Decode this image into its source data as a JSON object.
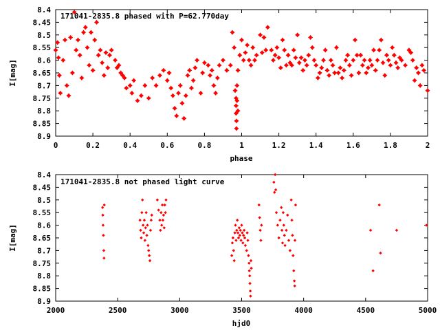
{
  "chart_data": [
    {
      "type": "scatter",
      "title": "171041-2835.8 phased with P=62.770day",
      "xlabel": "phase",
      "ylabel": "I[mag]",
      "xlim": [
        0,
        2
      ],
      "ylim": [
        8.9,
        8.4
      ],
      "y_inverted": true,
      "xticks": [
        "0",
        "0.2",
        "0.4",
        "0.6",
        "0.8",
        "1",
        "1.2",
        "1.4",
        "1.6",
        "1.8",
        "2"
      ],
      "xtick_values": [
        0,
        0.2,
        0.4,
        0.6,
        0.8,
        1,
        1.2,
        1.4,
        1.6,
        1.8,
        2
      ],
      "yticks": [
        "8.4",
        "8.45",
        "8.5",
        "8.55",
        "8.6",
        "8.65",
        "8.7",
        "8.75",
        "8.8",
        "8.85",
        "8.9"
      ],
      "ytick_values": [
        8.4,
        8.45,
        8.5,
        8.55,
        8.6,
        8.65,
        8.7,
        8.75,
        8.8,
        8.85,
        8.9
      ],
      "marker": "star",
      "color": "#ff0000",
      "points": [
        [
          0.0,
          8.56
        ],
        [
          0.01,
          8.53
        ],
        [
          0.015,
          8.59
        ],
        [
          0.02,
          8.66
        ],
        [
          0.025,
          8.73
        ],
        [
          0.04,
          8.6
        ],
        [
          0.05,
          8.52
        ],
        [
          0.06,
          8.7
        ],
        [
          0.07,
          8.74
        ],
        [
          0.08,
          8.51
        ],
        [
          0.09,
          8.65
        ],
        [
          0.1,
          8.41
        ],
        [
          0.11,
          8.56
        ],
        [
          0.12,
          8.52
        ],
        [
          0.13,
          8.58
        ],
        [
          0.14,
          8.67
        ],
        [
          0.15,
          8.49
        ],
        [
          0.16,
          8.47
        ],
        [
          0.17,
          8.55
        ],
        [
          0.18,
          8.62
        ],
        [
          0.19,
          8.49
        ],
        [
          0.2,
          8.64
        ],
        [
          0.21,
          8.52
        ],
        [
          0.22,
          8.45
        ],
        [
          0.23,
          8.58
        ],
        [
          0.24,
          8.56
        ],
        [
          0.25,
          8.61
        ],
        [
          0.26,
          8.66
        ],
        [
          0.27,
          8.57
        ],
        [
          0.28,
          8.63
        ],
        [
          0.29,
          8.58
        ],
        [
          0.3,
          8.56
        ],
        [
          0.32,
          8.6
        ],
        [
          0.33,
          8.63
        ],
        [
          0.34,
          8.62
        ],
        [
          0.35,
          8.65
        ],
        [
          0.36,
          8.66
        ],
        [
          0.37,
          8.67
        ],
        [
          0.38,
          8.71
        ],
        [
          0.4,
          8.7
        ],
        [
          0.41,
          8.73
        ],
        [
          0.42,
          8.68
        ],
        [
          0.44,
          8.76
        ],
        [
          0.46,
          8.74
        ],
        [
          0.48,
          8.7
        ],
        [
          0.5,
          8.75
        ],
        [
          0.52,
          8.67
        ],
        [
          0.54,
          8.7
        ],
        [
          0.56,
          8.66
        ],
        [
          0.58,
          8.64
        ],
        [
          0.6,
          8.68
        ],
        [
          0.61,
          8.65
        ],
        [
          0.62,
          8.71
        ],
        [
          0.63,
          8.74
        ],
        [
          0.64,
          8.79
        ],
        [
          0.65,
          8.82
        ],
        [
          0.66,
          8.73
        ],
        [
          0.67,
          8.7
        ],
        [
          0.68,
          8.77
        ],
        [
          0.69,
          8.83
        ],
        [
          0.7,
          8.74
        ],
        [
          0.71,
          8.66
        ],
        [
          0.72,
          8.64
        ],
        [
          0.73,
          8.71
        ],
        [
          0.74,
          8.68
        ],
        [
          0.75,
          8.63
        ],
        [
          0.76,
          8.6
        ],
        [
          0.78,
          8.73
        ],
        [
          0.79,
          8.65
        ],
        [
          0.8,
          8.61
        ],
        [
          0.82,
          8.62
        ],
        [
          0.83,
          8.66
        ],
        [
          0.84,
          8.64
        ],
        [
          0.85,
          8.7
        ],
        [
          0.86,
          8.73
        ],
        [
          0.87,
          8.67
        ],
        [
          0.88,
          8.62
        ],
        [
          0.9,
          8.6
        ],
        [
          0.92,
          8.64
        ],
        [
          0.94,
          8.62
        ],
        [
          0.95,
          8.49
        ],
        [
          0.96,
          8.55
        ],
        [
          0.965,
          8.72
        ],
        [
          0.97,
          8.75
        ],
        [
          0.97,
          8.78
        ],
        [
          0.97,
          8.81
        ],
        [
          0.972,
          8.84
        ],
        [
          0.972,
          8.87
        ],
        [
          0.975,
          8.7
        ],
        [
          0.975,
          8.76
        ],
        [
          0.98,
          8.8
        ],
        [
          0.98,
          8.64
        ],
        [
          0.99,
          8.58
        ],
        [
          1.0,
          8.52
        ],
        [
          1.01,
          8.6
        ],
        [
          1.02,
          8.57
        ],
        [
          1.03,
          8.54
        ],
        [
          1.04,
          8.6
        ],
        [
          1.05,
          8.62
        ],
        [
          1.06,
          8.55
        ],
        [
          1.07,
          8.6
        ],
        [
          1.08,
          8.58
        ],
        [
          1.1,
          8.5
        ],
        [
          1.11,
          8.57
        ],
        [
          1.12,
          8.51
        ],
        [
          1.13,
          8.56
        ],
        [
          1.14,
          8.47
        ],
        [
          1.16,
          8.56
        ],
        [
          1.17,
          8.6
        ],
        [
          1.18,
          8.58
        ],
        [
          1.19,
          8.55
        ],
        [
          1.2,
          8.59
        ],
        [
          1.21,
          8.63
        ],
        [
          1.22,
          8.52
        ],
        [
          1.23,
          8.56
        ],
        [
          1.24,
          8.62
        ],
        [
          1.25,
          8.58
        ],
        [
          1.26,
          8.61
        ],
        [
          1.27,
          8.62
        ],
        [
          1.28,
          8.56
        ],
        [
          1.29,
          8.59
        ],
        [
          1.3,
          8.5
        ],
        [
          1.31,
          8.61
        ],
        [
          1.32,
          8.59
        ],
        [
          1.33,
          8.64
        ],
        [
          1.34,
          8.6
        ],
        [
          1.35,
          8.62
        ],
        [
          1.36,
          8.58
        ],
        [
          1.37,
          8.51
        ],
        [
          1.38,
          8.55
        ],
        [
          1.39,
          8.6
        ],
        [
          1.4,
          8.62
        ],
        [
          1.41,
          8.67
        ],
        [
          1.42,
          8.65
        ],
        [
          1.43,
          8.63
        ],
        [
          1.44,
          8.6
        ],
        [
          1.45,
          8.56
        ],
        [
          1.46,
          8.64
        ],
        [
          1.47,
          8.66
        ],
        [
          1.48,
          8.6
        ],
        [
          1.49,
          8.62
        ],
        [
          1.5,
          8.65
        ],
        [
          1.51,
          8.55
        ],
        [
          1.52,
          8.65
        ],
        [
          1.53,
          8.63
        ],
        [
          1.54,
          8.67
        ],
        [
          1.55,
          8.64
        ],
        [
          1.56,
          8.6
        ],
        [
          1.57,
          8.58
        ],
        [
          1.58,
          8.62
        ],
        [
          1.59,
          8.66
        ],
        [
          1.6,
          8.6
        ],
        [
          1.61,
          8.52
        ],
        [
          1.62,
          8.58
        ],
        [
          1.63,
          8.65
        ],
        [
          1.64,
          8.58
        ],
        [
          1.65,
          8.62
        ],
        [
          1.66,
          8.6
        ],
        [
          1.67,
          8.65
        ],
        [
          1.68,
          8.63
        ],
        [
          1.69,
          8.6
        ],
        [
          1.7,
          8.62
        ],
        [
          1.71,
          8.56
        ],
        [
          1.72,
          8.64
        ],
        [
          1.73,
          8.6
        ],
        [
          1.74,
          8.56
        ],
        [
          1.75,
          8.52
        ],
        [
          1.76,
          8.61
        ],
        [
          1.77,
          8.66
        ],
        [
          1.78,
          8.58
        ],
        [
          1.79,
          8.6
        ],
        [
          1.8,
          8.62
        ],
        [
          1.81,
          8.55
        ],
        [
          1.82,
          8.58
        ],
        [
          1.83,
          8.61
        ],
        [
          1.84,
          8.63
        ],
        [
          1.85,
          8.59
        ],
        [
          1.86,
          8.6
        ],
        [
          1.88,
          8.62
        ],
        [
          1.9,
          8.56
        ],
        [
          1.91,
          8.57
        ],
        [
          1.92,
          8.6
        ],
        [
          1.93,
          8.68
        ],
        [
          1.94,
          8.63
        ],
        [
          1.95,
          8.65
        ],
        [
          1.96,
          8.7
        ],
        [
          1.97,
          8.62
        ],
        [
          1.98,
          8.64
        ],
        [
          2.0,
          8.72
        ]
      ]
    },
    {
      "type": "scatter",
      "title": "171041-2835.8 not phased light curve",
      "xlabel": "hjd0",
      "ylabel": "I[mag]",
      "xlim": [
        2000,
        5000
      ],
      "ylim": [
        8.9,
        8.4
      ],
      "y_inverted": true,
      "xticks": [
        "2000",
        "2500",
        "3000",
        "3500",
        "4000",
        "4500",
        "5000"
      ],
      "xtick_values": [
        2000,
        2500,
        3000,
        3500,
        4000,
        4500,
        5000
      ],
      "yticks": [
        "8.4",
        "8.45",
        "8.5",
        "8.55",
        "8.6",
        "8.65",
        "8.7",
        "8.75",
        "8.8",
        "8.85",
        "8.9"
      ],
      "ytick_values": [
        8.4,
        8.45,
        8.5,
        8.55,
        8.6,
        8.65,
        8.7,
        8.75,
        8.8,
        8.85,
        8.9
      ],
      "marker": "diamond",
      "color": "#ff0000",
      "points": [
        [
          2378,
          8.53
        ],
        [
          2380,
          8.56
        ],
        [
          2382,
          8.6
        ],
        [
          2385,
          8.64
        ],
        [
          2388,
          8.7
        ],
        [
          2390,
          8.73
        ],
        [
          2392,
          8.52
        ],
        [
          2680,
          8.58
        ],
        [
          2685,
          8.62
        ],
        [
          2690,
          8.65
        ],
        [
          2695,
          8.55
        ],
        [
          2700,
          8.5
        ],
        [
          2705,
          8.6
        ],
        [
          2710,
          8.63
        ],
        [
          2715,
          8.58
        ],
        [
          2720,
          8.66
        ],
        [
          2725,
          8.61
        ],
        [
          2730,
          8.55
        ],
        [
          2735,
          8.64
        ],
        [
          2740,
          8.6
        ],
        [
          2745,
          8.68
        ],
        [
          2750,
          8.7
        ],
        [
          2755,
          8.72
        ],
        [
          2760,
          8.74
        ],
        [
          2765,
          8.62
        ],
        [
          2770,
          8.58
        ],
        [
          2775,
          8.56
        ],
        [
          2820,
          8.5
        ],
        [
          2830,
          8.54
        ],
        [
          2840,
          8.58
        ],
        [
          2845,
          8.62
        ],
        [
          2850,
          8.55
        ],
        [
          2855,
          8.6
        ],
        [
          2860,
          8.52
        ],
        [
          2865,
          8.58
        ],
        [
          2870,
          8.56
        ],
        [
          2875,
          8.61
        ],
        [
          2880,
          8.52
        ],
        [
          2885,
          8.55
        ],
        [
          2890,
          8.5
        ],
        [
          3420,
          8.72
        ],
        [
          3425,
          8.67
        ],
        [
          3430,
          8.65
        ],
        [
          3435,
          8.7
        ],
        [
          3440,
          8.74
        ],
        [
          3445,
          8.63
        ],
        [
          3450,
          8.6
        ],
        [
          3455,
          8.66
        ],
        [
          3460,
          8.62
        ],
        [
          3465,
          8.58
        ],
        [
          3470,
          8.63
        ],
        [
          3475,
          8.65
        ],
        [
          3480,
          8.61
        ],
        [
          3485,
          8.64
        ],
        [
          3490,
          8.62
        ],
        [
          3495,
          8.66
        ],
        [
          3500,
          8.6
        ],
        [
          3505,
          8.63
        ],
        [
          3510,
          8.67
        ],
        [
          3515,
          8.64
        ],
        [
          3520,
          8.62
        ],
        [
          3525,
          8.65
        ],
        [
          3530,
          8.68
        ],
        [
          3540,
          8.7
        ],
        [
          3545,
          8.63
        ],
        [
          3550,
          8.66
        ],
        [
          3555,
          8.72
        ],
        [
          3560,
          8.75
        ],
        [
          3562,
          8.78
        ],
        [
          3565,
          8.8
        ],
        [
          3567,
          8.83
        ],
        [
          3570,
          8.86
        ],
        [
          3572,
          8.88
        ],
        [
          3575,
          8.74
        ],
        [
          3578,
          8.77
        ],
        [
          3640,
          8.52
        ],
        [
          3645,
          8.57
        ],
        [
          3650,
          8.62
        ],
        [
          3655,
          8.66
        ],
        [
          3660,
          8.6
        ],
        [
          3760,
          8.43
        ],
        [
          3765,
          8.47
        ],
        [
          3770,
          8.4
        ],
        [
          3775,
          8.46
        ],
        [
          3780,
          8.55
        ],
        [
          3790,
          8.6
        ],
        [
          3800,
          8.65
        ],
        [
          3810,
          8.58
        ],
        [
          3820,
          8.53
        ],
        [
          3825,
          8.62
        ],
        [
          3830,
          8.67
        ],
        [
          3835,
          8.55
        ],
        [
          3840,
          8.6
        ],
        [
          3845,
          8.64
        ],
        [
          3850,
          8.68
        ],
        [
          3860,
          8.62
        ],
        [
          3870,
          8.56
        ],
        [
          3880,
          8.66
        ],
        [
          3890,
          8.7
        ],
        [
          3900,
          8.5
        ],
        [
          3905,
          8.58
        ],
        [
          3910,
          8.64
        ],
        [
          3915,
          8.72
        ],
        [
          3920,
          8.78
        ],
        [
          3925,
          8.82
        ],
        [
          3928,
          8.84
        ],
        [
          3930,
          8.66
        ],
        [
          3935,
          8.52
        ],
        [
          4540,
          8.62
        ],
        [
          4560,
          8.78
        ],
        [
          4610,
          8.52
        ],
        [
          4620,
          8.71
        ],
        [
          4750,
          8.62
        ],
        [
          4990,
          8.6
        ]
      ]
    }
  ]
}
